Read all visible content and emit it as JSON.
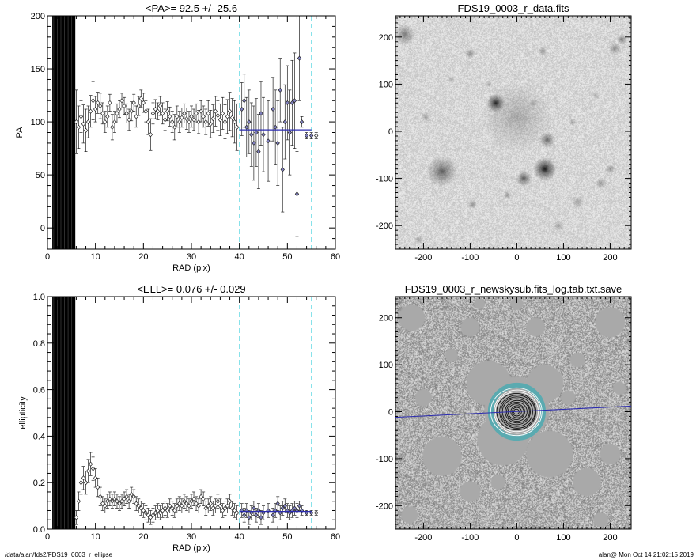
{
  "footer": {
    "left": "/data/alan/fds2/FDS19_0003_r_ellipse",
    "right": "alan@  Mon Oct 14 21:02:15 2019"
  },
  "colors": {
    "mean_line": "#2b2bb0",
    "limit_line": "#7fe0e8",
    "marker_fill": "#8080c0",
    "ring_teal": "#5aaab0"
  },
  "chart_data": [
    {
      "type": "scatter",
      "title": "<PA>=  92.5 +/-  25.6",
      "xlabel": "RAD (pix)",
      "ylabel": "PA",
      "xlim": [
        0,
        60
      ],
      "ylim": [
        -20,
        200
      ],
      "xticks": [
        0,
        10,
        20,
        30,
        40,
        50,
        60
      ],
      "yticks": [
        0,
        50,
        100,
        150,
        200
      ],
      "mean": 92.5,
      "mean_range": [
        40,
        55
      ],
      "vlines": [
        40,
        55
      ],
      "saturated_range": [
        1.0,
        5.8
      ],
      "points": [
        [
          6.0,
          100,
          30
        ],
        [
          6.5,
          95,
          20
        ],
        [
          7.0,
          105,
          15
        ],
        [
          7.5,
          98,
          18
        ],
        [
          8.0,
          92,
          20
        ],
        [
          8.5,
          100,
          15
        ],
        [
          9.0,
          110,
          15
        ],
        [
          9.5,
          120,
          18
        ],
        [
          10.0,
          112,
          12
        ],
        [
          10.5,
          118,
          10
        ],
        [
          11.0,
          115,
          12
        ],
        [
          11.5,
          108,
          10
        ],
        [
          12.0,
          100,
          10
        ],
        [
          12.5,
          105,
          10
        ],
        [
          13.0,
          118,
          8
        ],
        [
          13.5,
          95,
          12
        ],
        [
          14.0,
          100,
          10
        ],
        [
          14.5,
          108,
          9
        ],
        [
          15.0,
          112,
          8
        ],
        [
          15.5,
          120,
          7
        ],
        [
          16.0,
          115,
          8
        ],
        [
          16.5,
          108,
          9
        ],
        [
          17.0,
          102,
          10
        ],
        [
          17.5,
          110,
          9
        ],
        [
          18.0,
          118,
          8
        ],
        [
          18.5,
          105,
          10
        ],
        [
          19.0,
          115,
          9
        ],
        [
          19.5,
          122,
          8
        ],
        [
          20.0,
          118,
          9
        ],
        [
          20.5,
          110,
          10
        ],
        [
          21.0,
          100,
          12
        ],
        [
          21.5,
          88,
          15
        ],
        [
          22.0,
          108,
          10
        ],
        [
          22.5,
          112,
          9
        ],
        [
          23.0,
          110,
          8
        ],
        [
          23.5,
          115,
          9
        ],
        [
          24.0,
          108,
          10
        ],
        [
          24.5,
          102,
          10
        ],
        [
          25.0,
          110,
          9
        ],
        [
          25.5,
          105,
          9
        ],
        [
          26.0,
          100,
          10
        ],
        [
          26.5,
          95,
          12
        ],
        [
          27.0,
          105,
          10
        ],
        [
          27.5,
          100,
          10
        ],
        [
          28.0,
          104,
          9
        ],
        [
          28.5,
          108,
          9
        ],
        [
          29.0,
          103,
          10
        ],
        [
          29.5,
          100,
          10
        ],
        [
          30.0,
          105,
          10
        ],
        [
          30.5,
          102,
          10
        ],
        [
          31.0,
          108,
          9
        ],
        [
          31.5,
          100,
          11
        ],
        [
          32.0,
          110,
          10
        ],
        [
          32.5,
          105,
          10
        ],
        [
          33.0,
          100,
          12
        ],
        [
          33.5,
          108,
          12
        ],
        [
          34.0,
          98,
          13
        ],
        [
          34.5,
          103,
          13
        ],
        [
          35.0,
          110,
          14
        ],
        [
          35.5,
          106,
          14
        ],
        [
          36.0,
          102,
          15
        ],
        [
          36.5,
          108,
          15
        ],
        [
          37.0,
          100,
          16
        ],
        [
          37.5,
          105,
          16
        ],
        [
          38.0,
          110,
          18
        ],
        [
          38.5,
          104,
          18
        ],
        [
          39.0,
          100,
          20
        ],
        [
          39.5,
          95,
          22
        ],
        [
          40.5,
          112,
          25
        ],
        [
          41.0,
          120,
          25
        ],
        [
          41.5,
          95,
          28
        ],
        [
          42.0,
          100,
          30
        ],
        [
          42.5,
          88,
          30
        ],
        [
          43.0,
          80,
          35
        ],
        [
          43.5,
          90,
          32
        ],
        [
          44.0,
          72,
          35
        ],
        [
          44.5,
          108,
          30
        ],
        [
          45.0,
          88,
          35
        ],
        [
          46.0,
          82,
          38
        ],
        [
          47.0,
          112,
          30
        ],
        [
          47.5,
          95,
          35
        ],
        [
          48.0,
          80,
          40
        ],
        [
          48.5,
          130,
          30
        ],
        [
          49.0,
          55,
          40
        ],
        [
          49.5,
          100,
          35
        ],
        [
          50.0,
          118,
          35
        ],
        [
          50.5,
          90,
          40
        ],
        [
          51.0,
          118,
          40
        ],
        [
          51.5,
          120,
          45
        ],
        [
          52.0,
          32,
          40
        ],
        [
          52.5,
          160,
          40
        ],
        [
          53.0,
          100,
          5
        ],
        [
          54.0,
          87,
          3
        ],
        [
          55.0,
          87,
          3
        ],
        [
          56.0,
          87,
          3
        ]
      ]
    },
    {
      "type": "image",
      "title": "FDS19_0003_r_data.fits",
      "xlim": [
        -260,
        245
      ],
      "ylim": [
        -250,
        245
      ],
      "xticks": [
        -200,
        -100,
        0,
        100,
        200
      ],
      "yticks": [
        -200,
        -100,
        0,
        100,
        200
      ],
      "sources": [
        [
          0,
          30,
          55,
          0.22
        ],
        [
          -45,
          60,
          14,
          0.85
        ],
        [
          60,
          -80,
          18,
          0.9
        ],
        [
          65,
          -18,
          12,
          0.55
        ],
        [
          -160,
          -85,
          24,
          0.55
        ],
        [
          15,
          -100,
          12,
          0.6
        ],
        [
          -240,
          205,
          16,
          0.45
        ],
        [
          210,
          175,
          10,
          0.35
        ],
        [
          225,
          195,
          8,
          0.45
        ],
        [
          -100,
          165,
          8,
          0.35
        ],
        [
          55,
          170,
          7,
          0.35
        ],
        [
          -195,
          30,
          8,
          0.28
        ],
        [
          180,
          -110,
          9,
          0.3
        ],
        [
          -95,
          -155,
          7,
          0.35
        ],
        [
          130,
          -150,
          10,
          0.28
        ],
        [
          200,
          -80,
          8,
          0.35
        ],
        [
          -20,
          -135,
          6,
          0.35
        ],
        [
          120,
          20,
          6,
          0.28
        ],
        [
          -140,
          110,
          6,
          0.25
        ],
        [
          90,
          -200,
          8,
          0.3
        ],
        [
          -210,
          -230,
          7,
          0.25
        ],
        [
          170,
          75,
          6,
          0.25
        ],
        [
          -60,
          100,
          5,
          0.3
        ],
        [
          35,
          60,
          6,
          0.25
        ]
      ]
    },
    {
      "type": "scatter",
      "title": "<ELL>= 0.076 +/-  0.029",
      "xlabel": "RAD (pix)",
      "ylabel": "ellipticity",
      "xlim": [
        0,
        60
      ],
      "ylim": [
        0.0,
        1.0
      ],
      "xticks": [
        0,
        10,
        20,
        30,
        40,
        50,
        60
      ],
      "yticks": [
        0.0,
        0.2,
        0.4,
        0.6,
        0.8,
        1.0
      ],
      "mean": 0.076,
      "mean_range": [
        40,
        55
      ],
      "vlines": [
        40,
        55
      ],
      "saturated_range": [
        1.0,
        5.8
      ],
      "points": [
        [
          6.0,
          0.05,
          0.03
        ],
        [
          6.5,
          0.12,
          0.04
        ],
        [
          7.0,
          0.2,
          0.05
        ],
        [
          7.5,
          0.22,
          0.05
        ],
        [
          8.0,
          0.2,
          0.05
        ],
        [
          8.5,
          0.25,
          0.05
        ],
        [
          9.0,
          0.28,
          0.05
        ],
        [
          9.5,
          0.26,
          0.05
        ],
        [
          10.0,
          0.22,
          0.04
        ],
        [
          10.5,
          0.18,
          0.04
        ],
        [
          11.0,
          0.14,
          0.04
        ],
        [
          11.5,
          0.11,
          0.03
        ],
        [
          12.0,
          0.1,
          0.03
        ],
        [
          12.5,
          0.12,
          0.03
        ],
        [
          13.0,
          0.13,
          0.03
        ],
        [
          13.5,
          0.12,
          0.03
        ],
        [
          14.0,
          0.13,
          0.03
        ],
        [
          14.5,
          0.12,
          0.03
        ],
        [
          15.0,
          0.11,
          0.03
        ],
        [
          15.5,
          0.12,
          0.03
        ],
        [
          16.0,
          0.13,
          0.03
        ],
        [
          16.5,
          0.14,
          0.03
        ],
        [
          17.0,
          0.12,
          0.03
        ],
        [
          17.5,
          0.15,
          0.03
        ],
        [
          18.0,
          0.14,
          0.03
        ],
        [
          18.5,
          0.11,
          0.03
        ],
        [
          19.0,
          0.1,
          0.03
        ],
        [
          19.5,
          0.09,
          0.03
        ],
        [
          20.0,
          0.08,
          0.03
        ],
        [
          20.5,
          0.07,
          0.03
        ],
        [
          21.0,
          0.06,
          0.03
        ],
        [
          21.5,
          0.05,
          0.03
        ],
        [
          22.0,
          0.06,
          0.03
        ],
        [
          22.5,
          0.07,
          0.03
        ],
        [
          23.0,
          0.08,
          0.03
        ],
        [
          23.5,
          0.07,
          0.03
        ],
        [
          24.0,
          0.08,
          0.03
        ],
        [
          24.5,
          0.09,
          0.03
        ],
        [
          25.0,
          0.08,
          0.03
        ],
        [
          25.5,
          0.1,
          0.03
        ],
        [
          26.0,
          0.09,
          0.03
        ],
        [
          26.5,
          0.08,
          0.03
        ],
        [
          27.0,
          0.1,
          0.03
        ],
        [
          27.5,
          0.11,
          0.03
        ],
        [
          28.0,
          0.1,
          0.03
        ],
        [
          28.5,
          0.12,
          0.03
        ],
        [
          29.0,
          0.11,
          0.03
        ],
        [
          29.5,
          0.1,
          0.03
        ],
        [
          30.0,
          0.12,
          0.03
        ],
        [
          30.5,
          0.13,
          0.03
        ],
        [
          31.0,
          0.11,
          0.03
        ],
        [
          31.5,
          0.1,
          0.03
        ],
        [
          32.0,
          0.14,
          0.03
        ],
        [
          32.5,
          0.13,
          0.03
        ],
        [
          33.0,
          0.09,
          0.03
        ],
        [
          33.5,
          0.1,
          0.03
        ],
        [
          34.0,
          0.11,
          0.03
        ],
        [
          34.5,
          0.09,
          0.03
        ],
        [
          35.0,
          0.1,
          0.03
        ],
        [
          35.5,
          0.12,
          0.03
        ],
        [
          36.0,
          0.1,
          0.03
        ],
        [
          36.5,
          0.08,
          0.03
        ],
        [
          37.0,
          0.09,
          0.03
        ],
        [
          37.5,
          0.1,
          0.03
        ],
        [
          38.0,
          0.12,
          0.03
        ],
        [
          38.5,
          0.09,
          0.03
        ],
        [
          39.0,
          0.08,
          0.03
        ],
        [
          39.5,
          0.07,
          0.03
        ],
        [
          40.5,
          0.08,
          0.03
        ],
        [
          41.0,
          0.06,
          0.03
        ],
        [
          41.5,
          0.08,
          0.03
        ],
        [
          42.0,
          0.05,
          0.03
        ],
        [
          42.5,
          0.07,
          0.03
        ],
        [
          43.0,
          0.09,
          0.03
        ],
        [
          43.5,
          0.06,
          0.03
        ],
        [
          44.0,
          0.08,
          0.03
        ],
        [
          44.5,
          0.05,
          0.03
        ],
        [
          45.0,
          0.07,
          0.03
        ],
        [
          46.0,
          0.08,
          0.03
        ],
        [
          47.0,
          0.06,
          0.03
        ],
        [
          47.5,
          0.08,
          0.03
        ],
        [
          48.0,
          0.11,
          0.03
        ],
        [
          48.5,
          0.07,
          0.03
        ],
        [
          49.0,
          0.09,
          0.03
        ],
        [
          49.5,
          0.1,
          0.03
        ],
        [
          50.0,
          0.08,
          0.03
        ],
        [
          50.5,
          0.07,
          0.03
        ],
        [
          51.0,
          0.08,
          0.03
        ],
        [
          51.5,
          0.09,
          0.03
        ],
        [
          52.0,
          0.08,
          0.03
        ],
        [
          52.5,
          0.1,
          0.02
        ],
        [
          53.0,
          0.08,
          0.02
        ],
        [
          54.0,
          0.07,
          0.01
        ],
        [
          55.0,
          0.07,
          0.01
        ],
        [
          56.0,
          0.07,
          0.01
        ]
      ]
    },
    {
      "type": "image",
      "title": "FDS19_0003_r_newskysub.fits_log.tab.txt.save",
      "xlim": [
        -260,
        245
      ],
      "ylim": [
        -250,
        245
      ],
      "xticks": [
        -200,
        -100,
        0,
        100,
        200
      ],
      "yticks": [
        -200,
        -100,
        0,
        100,
        200
      ],
      "line": [
        [
          -260,
          -12
        ],
        [
          245,
          12
        ]
      ],
      "masks": [
        [
          0,
          5,
          70
        ],
        [
          -60,
          60,
          48
        ],
        [
          60,
          60,
          40
        ],
        [
          -30,
          -60,
          55
        ],
        [
          70,
          -90,
          50
        ],
        [
          -160,
          -95,
          42
        ],
        [
          -225,
          200,
          28
        ],
        [
          200,
          190,
          32
        ],
        [
          -100,
          180,
          20
        ],
        [
          40,
          180,
          20
        ],
        [
          150,
          -150,
          30
        ],
        [
          -100,
          -170,
          22
        ],
        [
          200,
          -90,
          22
        ],
        [
          -200,
          30,
          18
        ],
        [
          110,
          30,
          16
        ],
        [
          -140,
          120,
          14
        ],
        [
          130,
          110,
          16
        ],
        [
          -40,
          -150,
          16
        ],
        [
          220,
          50,
          14
        ],
        [
          -230,
          -220,
          18
        ],
        [
          180,
          -230,
          16
        ],
        [
          0,
          230,
          14
        ],
        [
          -80,
          230,
          12
        ]
      ],
      "rings": [
        6,
        10,
        14,
        18,
        22,
        26,
        30,
        34,
        38,
        42,
        46,
        50,
        55
      ]
    }
  ]
}
